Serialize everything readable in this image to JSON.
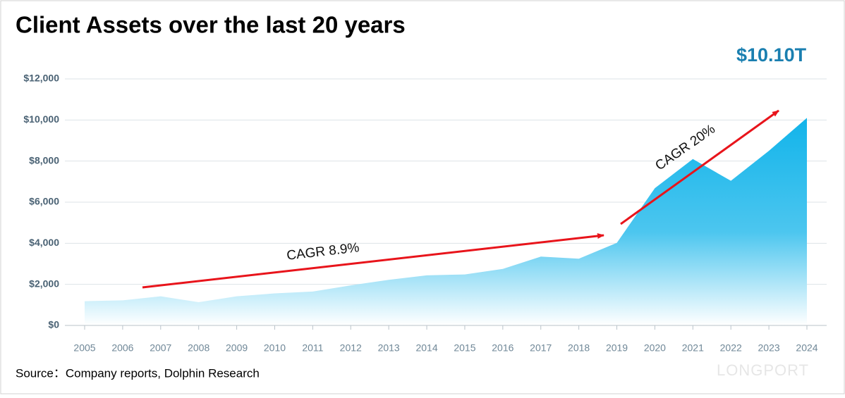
{
  "chart_data": {
    "type": "area",
    "title": "Client Assets over the last 20 years",
    "source": "Source：Company reports, Dolphin Research",
    "watermark": "LONGPORT",
    "annotations": [
      "$10.10T",
      "CAGR 8.9%",
      "CAGR 20%"
    ],
    "categories": [
      "2005",
      "2006",
      "2007",
      "2008",
      "2009",
      "2010",
      "2011",
      "2012",
      "2013",
      "2014",
      "2015",
      "2016",
      "2017",
      "2018",
      "2019",
      "2020",
      "2021",
      "2022",
      "2023",
      "2024"
    ],
    "series": [
      {
        "name": "Client Assets",
        "color": "#12b4ea",
        "values": [
          1180,
          1220,
          1420,
          1130,
          1420,
          1560,
          1650,
          1950,
          2220,
          2440,
          2480,
          2750,
          3350,
          3250,
          4020,
          6680,
          8100,
          7040,
          8500,
          10100
        ]
      }
    ],
    "ylim": [
      0,
      12000
    ],
    "yticks": [
      {
        "value": 0,
        "label": "$0"
      },
      {
        "value": 2000,
        "label": "$2,000"
      },
      {
        "value": 4000,
        "label": "$4,000"
      },
      {
        "value": 6000,
        "label": "$6,000"
      },
      {
        "value": 8000,
        "label": "$8,000"
      },
      {
        "value": 10000,
        "label": "$10,000"
      },
      {
        "value": 12000,
        "label": "$12,000"
      }
    ],
    "grid": true
  }
}
